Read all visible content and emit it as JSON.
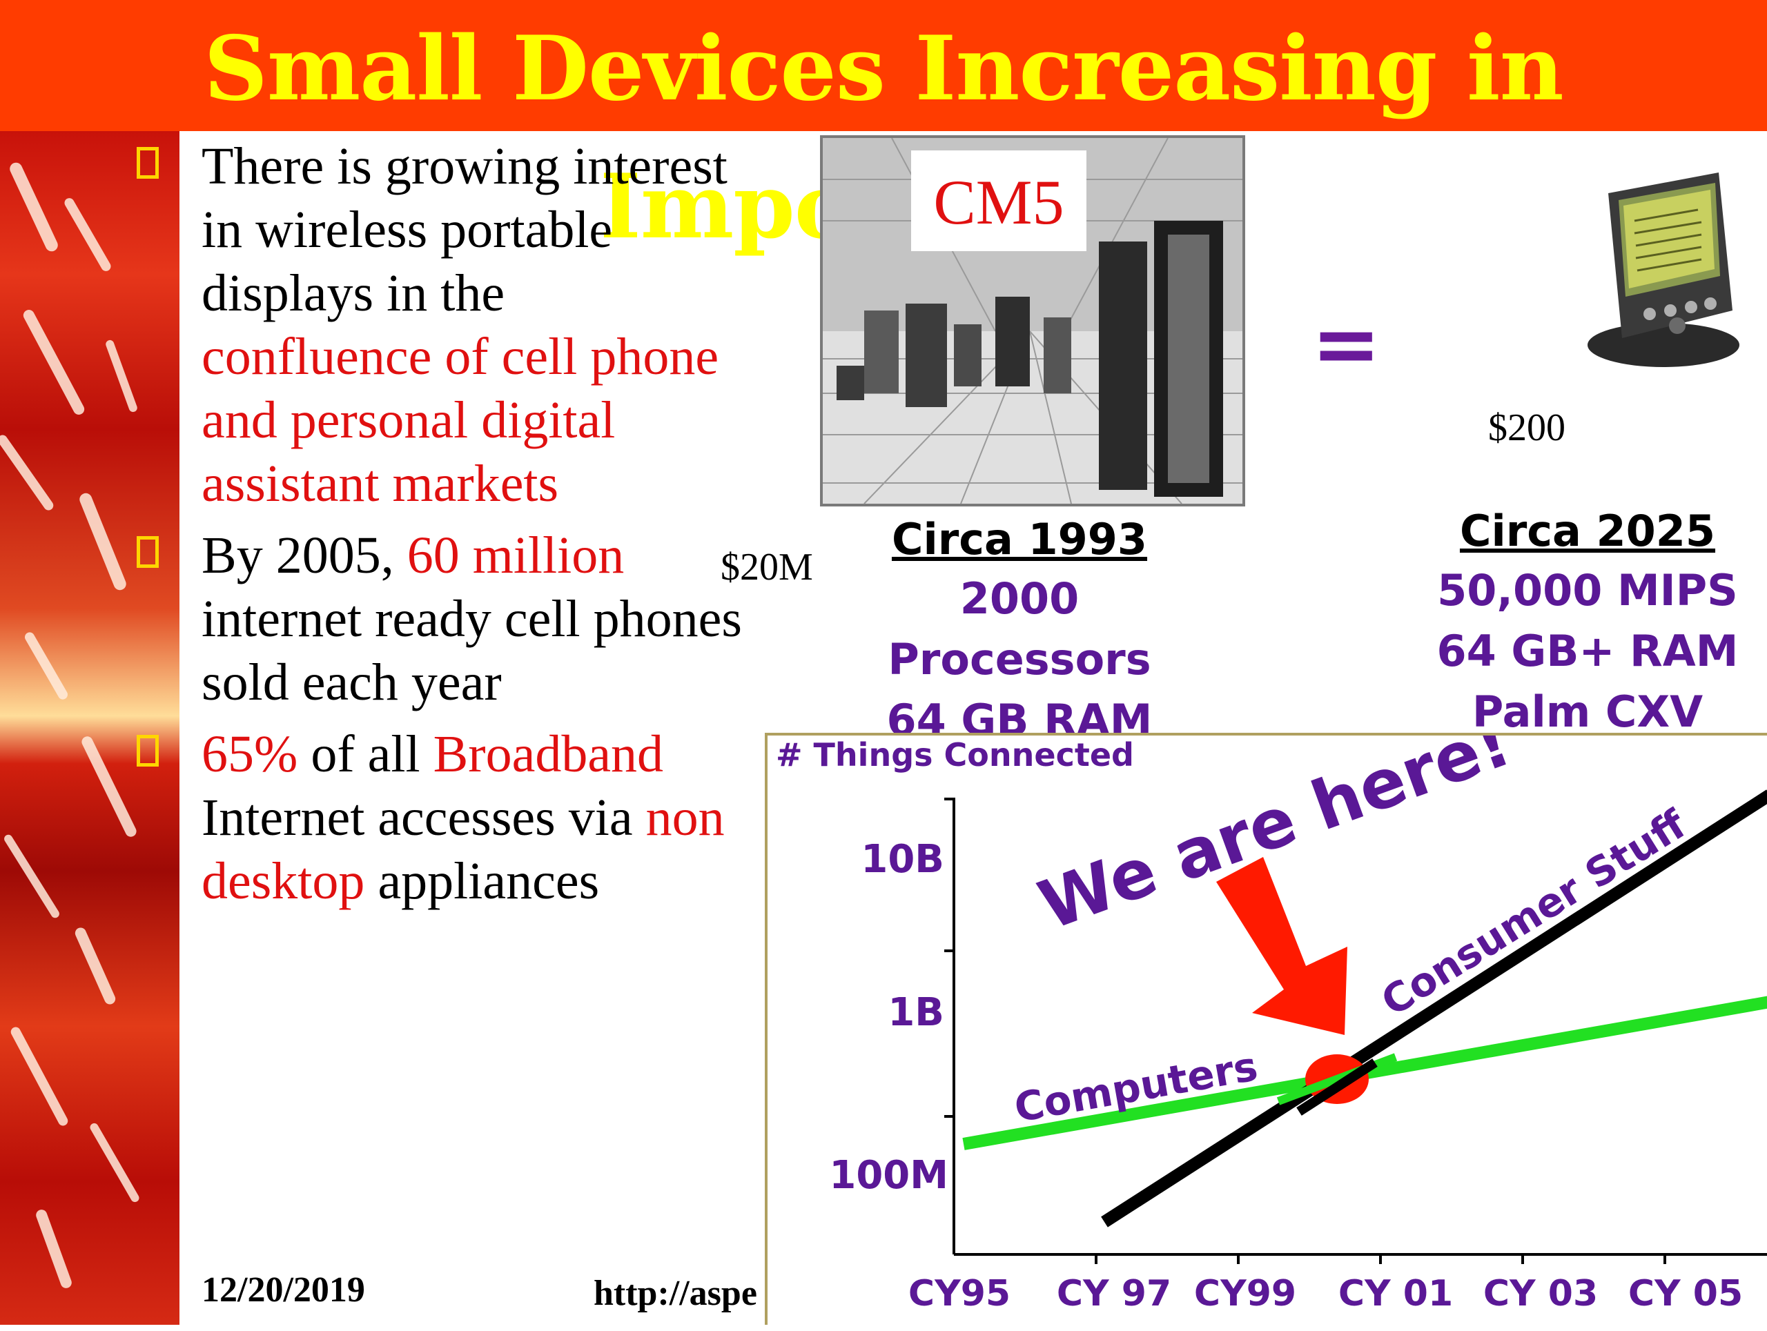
{
  "slide": {
    "title": "Small Devices Increasing in Importance",
    "bullets": [
      {
        "parts": [
          {
            "text": "There is growing interest in wireless portable displays in the ",
            "red": false
          },
          {
            "text": "confluence of cell phone and personal digital assistant markets",
            "red": true
          }
        ]
      },
      {
        "parts": [
          {
            "text": "By 2005, ",
            "red": false
          },
          {
            "text": "60 million",
            "red": true
          },
          {
            "text": " internet ready cell phones sold each year",
            "red": false
          }
        ]
      },
      {
        "parts": [
          {
            "text": "65%",
            "red": true
          },
          {
            "text": " of all ",
            "red": false
          },
          {
            "text": "Broadband",
            "red": true
          },
          {
            "text": " Internet accesses via ",
            "red": false
          },
          {
            "text": "non desktop",
            "red": true
          },
          {
            "text": " appliances",
            "red": false
          }
        ]
      }
    ],
    "footer": {
      "date": "12/20/2019",
      "url": "http://aspe"
    }
  },
  "comparison": {
    "cm5_label": "CM5",
    "old_price": "$20M",
    "new_price": "$200",
    "equals": "=",
    "old": {
      "heading": "Circa 1993",
      "lines": [
        "2000 Processors",
        "64 GB RAM"
      ]
    },
    "new": {
      "heading": "Circa 2025",
      "lines": [
        "50,000 MIPS",
        "64 GB+ RAM",
        "Palm CXV"
      ]
    }
  },
  "graph": {
    "ylabel": "# Things Connected",
    "y_ticks": [
      "10B",
      "1B",
      "100M"
    ],
    "x_ticks": [
      "CY95",
      "CY 97",
      "CY99",
      "CY 01",
      "CY 03",
      "CY 05"
    ],
    "callout": "We are here!",
    "series": [
      {
        "name": "Computers",
        "color": "#22e022"
      },
      {
        "name": "Consumer Stuff",
        "color": "#000000"
      }
    ],
    "colors": {
      "label": "#5a1896",
      "arrow": "#ff1a00",
      "intersection": "#ff1a00"
    }
  }
}
